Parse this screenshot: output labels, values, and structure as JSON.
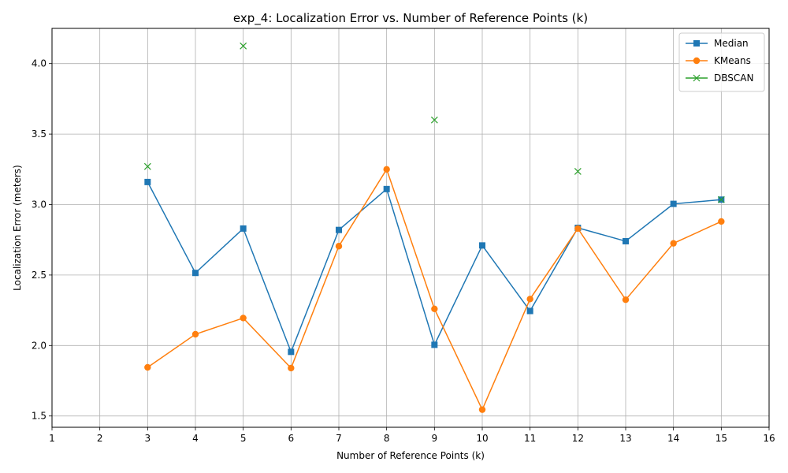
{
  "chart_data": {
    "type": "line",
    "title": "exp_4: Localization Error vs. Number of Reference Points (k)",
    "xlabel": "Number of Reference Points (k)",
    "ylabel": "Localization Error (meters)",
    "xlim": [
      1,
      16
    ],
    "ylim": [
      1.42,
      4.25
    ],
    "x_ticks": [
      1,
      2,
      3,
      4,
      5,
      6,
      7,
      8,
      9,
      10,
      11,
      12,
      13,
      14,
      15,
      16
    ],
    "y_ticks": [
      1.5,
      2.0,
      2.5,
      3.0,
      3.5,
      4.0
    ],
    "y_tick_labels": [
      "1.5",
      "2.0",
      "2.5",
      "3.0",
      "3.5",
      "4.0"
    ],
    "grid": true,
    "legend_position": "top-right",
    "series": [
      {
        "name": "Median",
        "color": "#1f77b4",
        "marker": "square",
        "line": true,
        "points": [
          [
            3,
            3.16
          ],
          [
            4,
            2.515
          ],
          [
            5,
            2.83
          ],
          [
            6,
            1.955
          ],
          [
            7,
            2.82
          ],
          [
            8,
            3.11
          ],
          [
            9,
            2.005
          ],
          [
            10,
            2.71
          ],
          [
            11,
            2.245
          ],
          [
            12,
            2.835
          ],
          [
            13,
            2.74
          ],
          [
            14,
            3.005
          ],
          [
            15,
            3.035
          ]
        ]
      },
      {
        "name": "KMeans",
        "color": "#ff7f0e",
        "marker": "circle",
        "line": true,
        "points": [
          [
            3,
            1.845
          ],
          [
            4,
            2.08
          ],
          [
            5,
            2.195
          ],
          [
            6,
            1.84
          ],
          [
            7,
            2.705
          ],
          [
            8,
            3.25
          ],
          [
            9,
            2.26
          ],
          [
            10,
            1.545
          ],
          [
            11,
            2.33
          ],
          [
            12,
            2.83
          ],
          [
            13,
            2.325
          ],
          [
            14,
            2.725
          ],
          [
            15,
            2.88
          ]
        ]
      },
      {
        "name": "DBSCAN",
        "color": "#2ca02c",
        "marker": "x",
        "line": true,
        "points": [
          [
            3,
            3.27
          ],
          [
            5,
            4.125
          ],
          [
            9,
            3.6
          ],
          [
            12,
            3.235
          ],
          [
            15,
            3.035
          ]
        ]
      }
    ]
  }
}
